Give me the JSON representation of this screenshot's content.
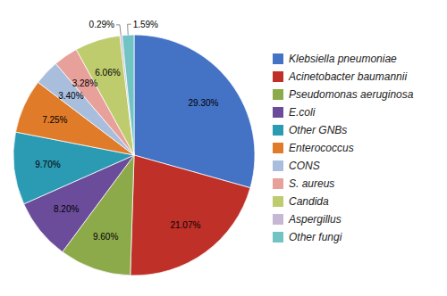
{
  "chart_data": {
    "type": "pie",
    "categories": [
      "Klebsiella pneumoniae",
      "Acinetobacter baumannii",
      "Pseudomonas aeruginosa",
      "E.coli",
      "Other GNBs",
      "Enterococcus",
      "CONS",
      "S. aureus",
      "Candida",
      "Aspergillus",
      "Other fungi"
    ],
    "values": [
      29.3,
      21.07,
      9.6,
      8.2,
      9.7,
      7.25,
      3.4,
      3.28,
      6.06,
      0.29,
      1.59
    ],
    "value_labels": [
      "29.30%",
      "21.07%",
      "9.60%",
      "8.20%",
      "9.70%",
      "7.25%",
      "3.40%",
      "3.28%",
      "6.06%",
      "0.29%",
      "1.59%"
    ],
    "colors": [
      "#4472C4",
      "#BE3028",
      "#8DAA4A",
      "#6B4C9A",
      "#2B9AB3",
      "#E07B2A",
      "#A9BEDD",
      "#E8A09A",
      "#BFCC6E",
      "#C5B8D5",
      "#72C4C4"
    ],
    "data_labels": true,
    "legend": "right"
  }
}
